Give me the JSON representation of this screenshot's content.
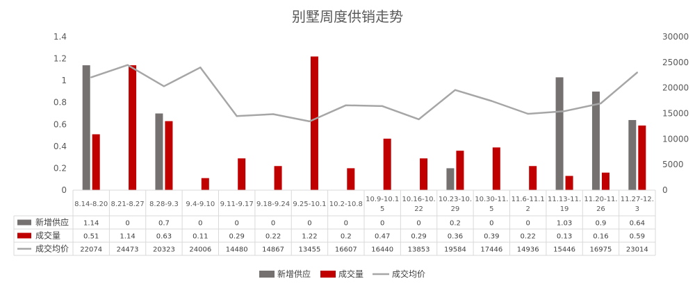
{
  "chart_data": {
    "type": "bar",
    "title": "别墅周度供销走势",
    "categories": [
      [
        "8.14-8.20"
      ],
      [
        "8.21-8.27"
      ],
      [
        "8.28-9.3"
      ],
      [
        "9.4-9.10"
      ],
      [
        "9.11-9.17"
      ],
      [
        "9.18-9.24"
      ],
      [
        "9.25-10.1"
      ],
      [
        "10.2-10.8"
      ],
      [
        "10.9-10.1",
        "5"
      ],
      [
        "10.16-10.",
        "22"
      ],
      [
        "10.23-10.",
        "29"
      ],
      [
        "10.30-11.",
        "5"
      ],
      [
        "11.6-11.1",
        "2"
      ],
      [
        "11.13-11.",
        "19"
      ],
      [
        "11.20-11.",
        "26"
      ],
      [
        "11.27-12.",
        "3"
      ]
    ],
    "series": [
      {
        "name": "新增供应",
        "type": "bar",
        "axis": "left",
        "color": "#767171",
        "values": [
          1.14,
          0,
          0.7,
          0,
          0,
          0,
          0,
          0,
          0,
          0,
          0.2,
          0,
          0,
          1.03,
          0.9,
          0.64
        ]
      },
      {
        "name": "成交量",
        "type": "bar",
        "axis": "left",
        "color": "#C00000",
        "values": [
          0.51,
          1.14,
          0.63,
          0.11,
          0.29,
          0.22,
          1.22,
          0.2,
          0.47,
          0.29,
          0.36,
          0.39,
          0.22,
          0.13,
          0.16,
          0.59
        ]
      },
      {
        "name": "成交均价",
        "type": "line",
        "axis": "right",
        "color": "#A6A6A6",
        "values": [
          22074,
          24473,
          20323,
          24006,
          14480,
          14867,
          13455,
          16607,
          16440,
          13853,
          19584,
          17446,
          14936,
          15446,
          16975,
          23014
        ]
      }
    ],
    "y_left": {
      "min": 0,
      "max": 1.4,
      "ticks": [
        "0",
        "0.2",
        "0.4",
        "0.6",
        "0.8",
        "1",
        "1.2",
        "1.4"
      ]
    },
    "y_right": {
      "min": 0,
      "max": 30000,
      "ticks": [
        "0",
        "5000",
        "10000",
        "15000",
        "20000",
        "25000",
        "30000"
      ]
    },
    "grid": false,
    "data_table": true,
    "legend": "bottom-center"
  }
}
